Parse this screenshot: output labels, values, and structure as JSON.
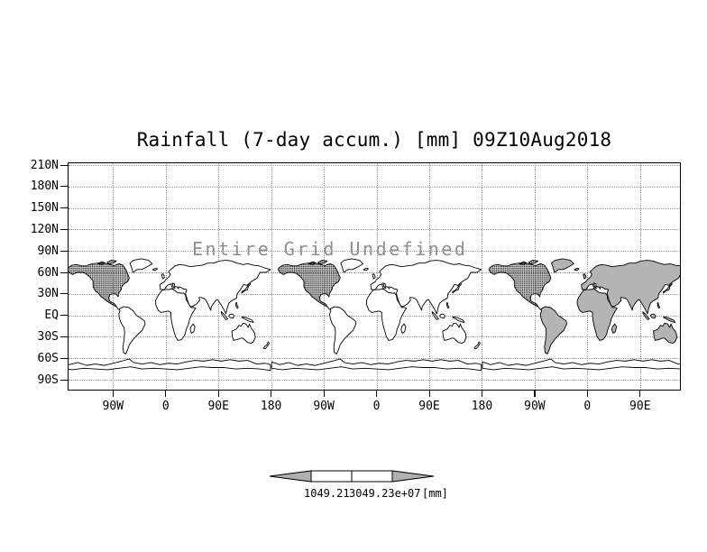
{
  "chart_data": {
    "type": "heatmap",
    "title": "Rainfall (7-day accum.) [mm] 09Z10Aug2018",
    "annotation": "Entire Grid Undefined",
    "x_tick_labels": [
      "90W",
      "0",
      "90E",
      "180",
      "90W",
      "0",
      "90E",
      "180",
      "90W",
      "0",
      "90E"
    ],
    "y_tick_labels": [
      "210N",
      "180N",
      "150N",
      "120N",
      "90N",
      "60N",
      "30N",
      "EQ",
      "30S",
      "60S",
      "90S"
    ],
    "values": [],
    "grid": "dotted",
    "legend_position": "bottom-colorbar",
    "colorbar": {
      "left_label": "1049.21",
      "right_label": "3049.23e+07",
      "units": "[mm]"
    },
    "colors": {
      "gridline": "#9a9a9a",
      "shaded_land": "#b4b4b4",
      "dense_land": "#1a1a1a",
      "annotation_text": "#8e8e8e",
      "colorbar_arrow": "#b0b0b0",
      "background": "#ffffff"
    }
  }
}
